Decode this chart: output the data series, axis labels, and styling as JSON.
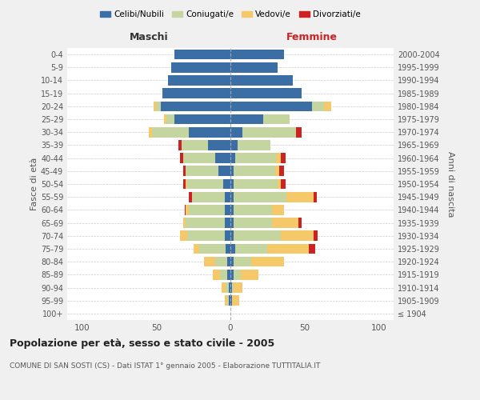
{
  "age_groups": [
    "100+",
    "95-99",
    "90-94",
    "85-89",
    "80-84",
    "75-79",
    "70-74",
    "65-69",
    "60-64",
    "55-59",
    "50-54",
    "45-49",
    "40-44",
    "35-39",
    "30-34",
    "25-29",
    "20-24",
    "15-19",
    "10-14",
    "5-9",
    "0-4"
  ],
  "birth_years": [
    "≤ 1904",
    "1905-1909",
    "1910-1914",
    "1915-1919",
    "1920-1924",
    "1925-1929",
    "1930-1934",
    "1935-1939",
    "1940-1944",
    "1945-1949",
    "1950-1954",
    "1955-1959",
    "1960-1964",
    "1965-1969",
    "1970-1974",
    "1975-1979",
    "1980-1984",
    "1985-1989",
    "1990-1994",
    "1995-1999",
    "2000-2004"
  ],
  "colors": {
    "celibi": "#3a6ea5",
    "coniugati": "#c5d5a0",
    "vedovi": "#f5c96a",
    "divorziati": "#cc2222"
  },
  "maschi": {
    "celibi": [
      0,
      1,
      1,
      2,
      2,
      3,
      4,
      4,
      4,
      4,
      5,
      8,
      10,
      15,
      28,
      38,
      47,
      46,
      42,
      40,
      38
    ],
    "coniugati": [
      0,
      1,
      2,
      5,
      8,
      18,
      25,
      26,
      24,
      22,
      24,
      22,
      22,
      18,
      25,
      5,
      3,
      0,
      0,
      0,
      0
    ],
    "vedovi": [
      0,
      2,
      3,
      5,
      8,
      4,
      5,
      2,
      2,
      0,
      1,
      0,
      0,
      0,
      2,
      2,
      2,
      0,
      0,
      0,
      0
    ],
    "divorziati": [
      0,
      0,
      0,
      0,
      0,
      0,
      0,
      0,
      1,
      2,
      2,
      2,
      2,
      2,
      0,
      0,
      0,
      0,
      0,
      0,
      0
    ]
  },
  "femmine": {
    "celibi": [
      0,
      1,
      1,
      2,
      2,
      3,
      2,
      2,
      2,
      2,
      2,
      2,
      3,
      5,
      8,
      22,
      55,
      48,
      42,
      32,
      36
    ],
    "coniugati": [
      0,
      0,
      1,
      5,
      12,
      22,
      32,
      26,
      26,
      36,
      30,
      28,
      28,
      22,
      36,
      18,
      8,
      0,
      0,
      0,
      0
    ],
    "vedovi": [
      0,
      5,
      6,
      12,
      22,
      28,
      22,
      18,
      8,
      18,
      2,
      3,
      3,
      0,
      0,
      0,
      5,
      0,
      0,
      0,
      0
    ],
    "divorziati": [
      0,
      0,
      0,
      0,
      0,
      4,
      3,
      2,
      0,
      2,
      3,
      3,
      3,
      0,
      4,
      0,
      0,
      0,
      0,
      0,
      0
    ]
  },
  "xlim": 110,
  "title": "Popolazione per età, sesso e stato civile - 2005",
  "subtitle": "COMUNE DI SAN SOSTI (CS) - Dati ISTAT 1° gennaio 2005 - Elaborazione TUTTITALIA.IT",
  "xlabel_left": "Maschi",
  "xlabel_right": "Femmine",
  "ylabel_left": "Fasce di età",
  "ylabel_right": "Anni di nascita",
  "legend_labels": [
    "Celibi/Nubili",
    "Coniugati/e",
    "Vedovi/e",
    "Divorziati/e"
  ],
  "background_color": "#f0f0f0",
  "plot_bg": "#ffffff"
}
